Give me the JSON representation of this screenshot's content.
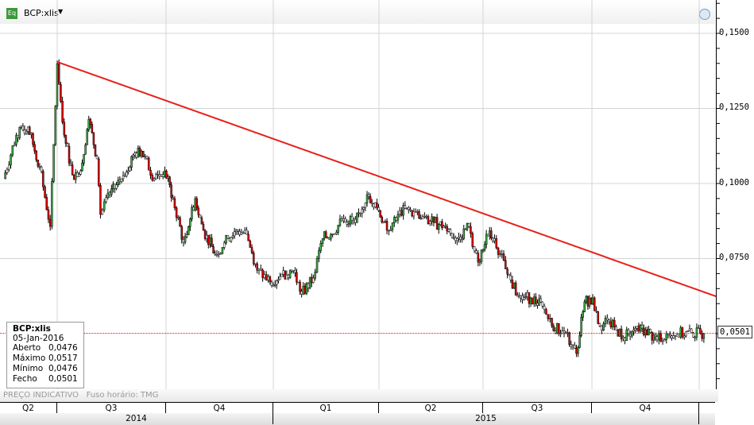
{
  "header": {
    "symbol": "BCP:xlis",
    "badge": "Eq",
    "menu_icon": "caret-down-icon",
    "clock_icon": "clock-icon"
  },
  "y_axis": {
    "ticks": [
      "0,1500",
      "0,1250",
      "0,1000",
      "0,0750"
    ],
    "tick_values": [
      0.15,
      0.125,
      0.1,
      0.075
    ],
    "range": [
      0.032,
      0.16
    ],
    "last_price_label": "0,0501"
  },
  "info_box": {
    "title": "BCP:xlis",
    "date": "05-Jan-2016",
    "rows": [
      {
        "label": "Aberto",
        "value": "0,0476"
      },
      {
        "label": "Máximo",
        "value": "0,0517"
      },
      {
        "label": "Mínimo",
        "value": "0,0476"
      },
      {
        "label": "Fecho",
        "value": "0,0501"
      }
    ]
  },
  "footer": {
    "note": "PREÇO INDICATIVO",
    "timezone": "Fuso horário: TMG"
  },
  "x_axis": {
    "quarters": [
      "Q2",
      "Q3",
      "Q4",
      "Q1",
      "Q2",
      "Q3",
      "Q4"
    ],
    "years": [
      "2014",
      "2015"
    ]
  },
  "colors": {
    "up": "#3cb043",
    "down": "#e00000",
    "trend": "#e8201a",
    "last_line": "#e00000"
  },
  "chart_data": {
    "type": "candlestick",
    "grid": true,
    "x": [
      "2014-05-16",
      "2014-05-27",
      "2014-06-06",
      "2014-06-16",
      "2014-06-25",
      "2014-07-01",
      "2014-07-07",
      "2014-07-14",
      "2014-07-21",
      "2014-07-28",
      "2014-08-04",
      "2014-08-07",
      "2014-08-15",
      "2014-08-25",
      "2014-09-04",
      "2014-09-11",
      "2014-09-22",
      "2014-10-01",
      "2014-10-08",
      "2014-10-17",
      "2014-10-27",
      "2014-11-03",
      "2014-11-13",
      "2014-11-24",
      "2014-12-01",
      "2014-12-10",
      "2014-12-19",
      "2014-12-30",
      "2015-01-09",
      "2015-01-19",
      "2015-01-26",
      "2015-02-05",
      "2015-02-13",
      "2015-02-20",
      "2015-03-03",
      "2015-03-13",
      "2015-03-23",
      "2015-03-30",
      "2015-04-09",
      "2015-04-20",
      "2015-04-29",
      "2015-05-08",
      "2015-05-19",
      "2015-05-29",
      "2015-06-08",
      "2015-06-18",
      "2015-06-26",
      "2015-07-03",
      "2015-07-10",
      "2015-07-21",
      "2015-07-31",
      "2015-08-10",
      "2015-08-20",
      "2015-08-28",
      "2015-09-09",
      "2015-09-18",
      "2015-09-25",
      "2015-10-02",
      "2015-10-08",
      "2015-10-16",
      "2015-10-28",
      "2015-11-06",
      "2015-11-16",
      "2015-11-26",
      "2015-12-04",
      "2016-01-05"
    ],
    "close": [
      0.1016,
      0.1161,
      0.1188,
      0.1055,
      0.0857,
      0.1399,
      0.1161,
      0.1029,
      0.1042,
      0.1214,
      0.1082,
      0.0897,
      0.0963,
      0.1016,
      0.1095,
      0.1108,
      0.1016,
      0.1042,
      0.095,
      0.0804,
      0.095,
      0.0844,
      0.0764,
      0.0817,
      0.0844,
      0.0831,
      0.0711,
      0.0672,
      0.0698,
      0.0711,
      0.0632,
      0.0685,
      0.0817,
      0.0831,
      0.0883,
      0.087,
      0.0963,
      0.0936,
      0.0844,
      0.091,
      0.091,
      0.0883,
      0.087,
      0.0857,
      0.0817,
      0.0857,
      0.0738,
      0.0831,
      0.0817,
      0.0698,
      0.0619,
      0.0619,
      0.0592,
      0.0526,
      0.05,
      0.0434,
      0.0606,
      0.0619,
      0.0526,
      0.054,
      0.0487,
      0.0513,
      0.0513,
      0.0479,
      0.05,
      0.0501
    ],
    "trendline": {
      "start": {
        "date": "2014-07-01",
        "price": 0.1405
      },
      "end": {
        "date": "2016-02-17",
        "price": 0.0579
      }
    },
    "last_price": 0.0501
  }
}
